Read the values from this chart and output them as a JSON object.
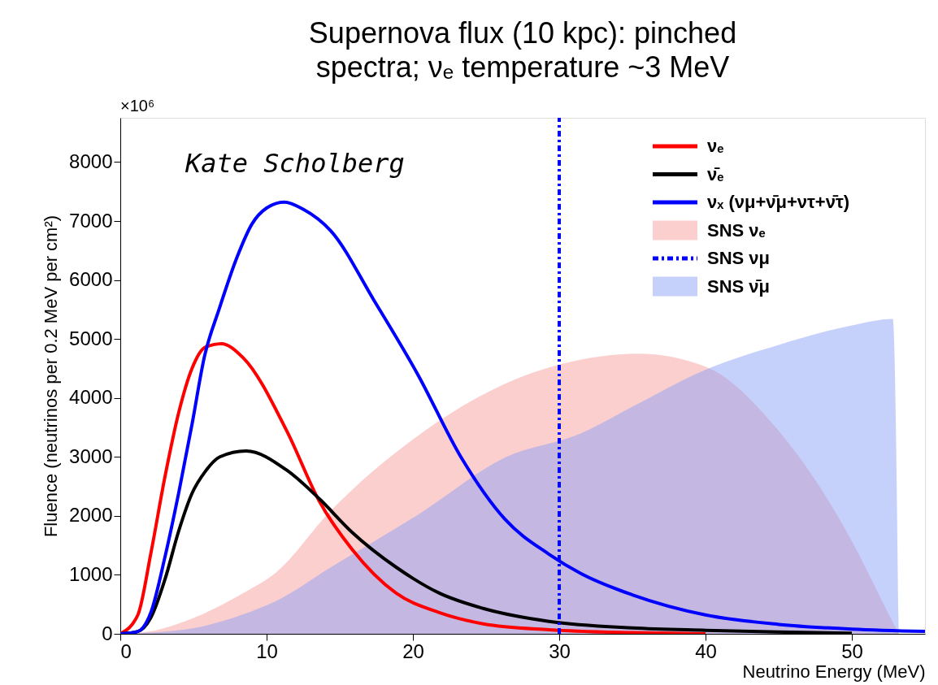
{
  "chart_data": {
    "type": "line",
    "title": "Supernova flux (10 kpc): pinched spectra; νₑ temperature ~3 MeV",
    "xlabel": "Neutrino Energy (MeV)",
    "ylabel": "Fluence (neutrinos per 0.2 MeV per cm²)",
    "annotations": [
      "×10⁶",
      "Kate Scholberg"
    ],
    "xlim": [
      0,
      55
    ],
    "ylim": [
      0,
      8750
    ],
    "xticks": [
      0,
      10,
      20,
      30,
      40,
      50
    ],
    "yticks": [
      0,
      1000,
      2000,
      3000,
      4000,
      5000,
      6000,
      7000,
      8000
    ],
    "legend": "top right",
    "series": [
      {
        "name": "νₑ",
        "color": "#ff0000",
        "x": [
          0,
          1.2,
          2.1,
          3.05,
          4,
          4.9,
          5.8,
          6.9,
          8.4,
          11.4,
          13.6,
          15.85,
          18.85,
          21.8,
          24.8,
          29.3,
          35,
          40
        ],
        "values": [
          0,
          320,
          1380,
          2660,
          3760,
          4500,
          4860,
          4920,
          4680,
          3430,
          2250,
          1430,
          690,
          360,
          170,
          70,
          20,
          0
        ]
      },
      {
        "name": "ν̄ₑ",
        "color": "#000000",
        "x": [
          0,
          1.2,
          2.1,
          3.05,
          4,
          4.9,
          5.8,
          6.8,
          8.6,
          11.4,
          13.6,
          15.85,
          18.85,
          21.8,
          24.8,
          29.3,
          35,
          40,
          45,
          50
        ],
        "values": [
          0,
          40,
          280,
          920,
          1750,
          2380,
          2750,
          3000,
          3100,
          2770,
          2290,
          1720,
          1130,
          690,
          430,
          210,
          100,
          60,
          30,
          10
        ]
      },
      {
        "name": "νₓ (νμ+ν̄μ+ντ+ν̄τ)",
        "color": "#0000ff",
        "x": [
          0,
          1.2,
          2.1,
          3.05,
          4,
          4.9,
          5.75,
          6.76,
          8,
          9,
          10,
          11.2,
          12.5,
          14.4,
          17.35,
          20.35,
          23.3,
          26.3,
          29.3,
          31.5,
          35,
          40,
          45,
          50,
          55
        ],
        "values": [
          0,
          40,
          370,
          1300,
          2400,
          3550,
          4700,
          5510,
          6400,
          6950,
          7220,
          7320,
          7200,
          6830,
          5650,
          4390,
          2990,
          1940,
          1350,
          1020,
          660,
          320,
          160,
          80,
          40
        ]
      },
      {
        "name": "SNS νₑ",
        "type": "area",
        "color": "#fccfcf",
        "x": [
          0,
          2,
          5.1,
          8.4,
          10.6,
          14.4,
          20.35,
          26.3,
          31.5,
          35.4,
          40,
          45,
          50,
          52,
          53.2
        ],
        "values": [
          0,
          40,
          280,
          690,
          1030,
          2090,
          3360,
          4240,
          4650,
          4750,
          4530,
          3440,
          1570,
          590,
          0
        ]
      },
      {
        "name": "SNS νμ",
        "color": "#0000ff",
        "line_style": "dashed",
        "x": [
          30,
          30
        ],
        "values": [
          0,
          8750
        ]
      },
      {
        "name": "SNS ν̄μ",
        "type": "area",
        "color": "#c5d0fb",
        "x": [
          0,
          2,
          5.1,
          8.4,
          10.6,
          14.4,
          20.35,
          26.3,
          31.5,
          35,
          40,
          45,
          50,
          52.8,
          53.2
        ],
        "values": [
          0,
          20,
          100,
          330,
          550,
          1130,
          2020,
          2990,
          3400,
          3850,
          4480,
          4900,
          5230,
          5340,
          0
        ]
      }
    ]
  }
}
